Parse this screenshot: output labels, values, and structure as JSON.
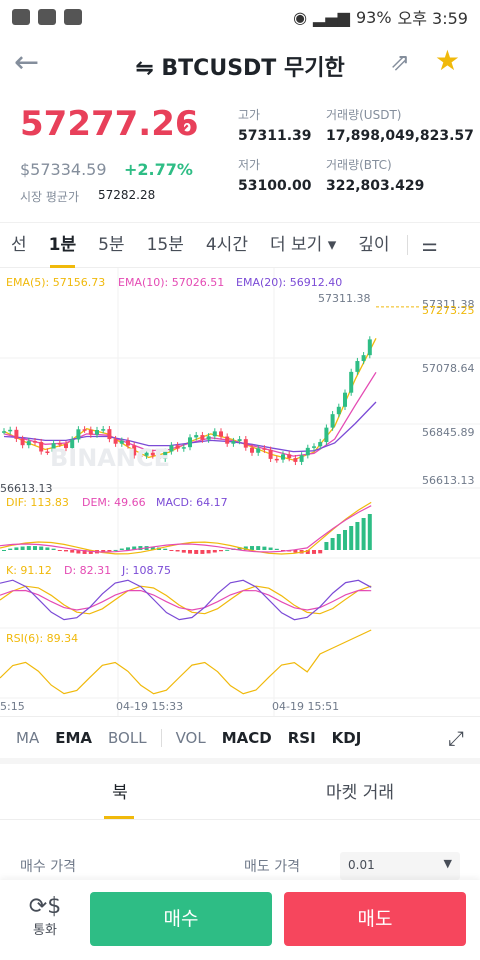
{
  "status_bar": {
    "battery": "93%",
    "time": "오후 3:59"
  },
  "header": {
    "title": "⇋ BTCUSDT 무기한"
  },
  "price": {
    "last": "57277.26",
    "usd": "$57334.59",
    "change": "+2.77%",
    "avg_label": "시장 평균가",
    "avg_value": "57282.28",
    "high_label": "고가",
    "high_value": "57311.39",
    "low_label": "저가",
    "low_value": "53100.00",
    "vol_usdt_label": "거래량(USDT)",
    "vol_usdt_value": "17,898,049,823.57",
    "vol_btc_label": "거래량(BTC)",
    "vol_btc_value": "322,803.429"
  },
  "tabs": [
    {
      "label": "선"
    },
    {
      "label": "1분"
    },
    {
      "label": "5분"
    },
    {
      "label": "15분"
    },
    {
      "label": "4시간"
    },
    {
      "label": "더 보기 ▾"
    },
    {
      "label": "깊이"
    }
  ],
  "chart": {
    "ema5": "EMA(5): 57156.73",
    "ema10": "EMA(10): 57026.51",
    "ema20": "EMA(20): 56912.40",
    "high_mark": "57311.38",
    "price_axis": [
      "57311.38",
      "57273.25",
      "57078.64",
      "56845.89",
      "56613.13"
    ],
    "low_mark": "56613.13",
    "watermark": "BINANCE",
    "dif": "DIF: 113.83",
    "dem": "DEM: 49.66",
    "macd": "MACD: 64.17",
    "k": "K: 91.12",
    "d": "D: 82.31",
    "j": "J: 108.75",
    "rsi": "RSI(6): 89.34",
    "times": [
      "5:15",
      "04-19 15:33",
      "04-19 15:51"
    ],
    "colors": {
      "up": "#2ebd85",
      "down": "#f6465d",
      "ema5": "#f0b90b",
      "ema10": "#e44bb4",
      "ema20": "#7b4bd6"
    }
  },
  "chart_data": {
    "type": "line",
    "title": "",
    "series": [
      {
        "name": "EMA(5)",
        "values": [
          56800,
          56760,
          56730,
          56750,
          56810,
          56790,
          56740,
          56700,
          56720,
          56760,
          56790,
          56770,
          56740,
          56710,
          56690,
          56720,
          56820,
          57000,
          57156.73
        ]
      },
      {
        "name": "EMA(10)",
        "values": [
          56790,
          56770,
          56750,
          56755,
          56790,
          56785,
          56755,
          56725,
          56730,
          56755,
          56775,
          56765,
          56745,
          56725,
          56705,
          56715,
          56770,
          56900,
          57026.51
        ]
      },
      {
        "name": "EMA(20)",
        "values": [
          56780,
          56775,
          56765,
          56765,
          56780,
          56780,
          56765,
          56745,
          56745,
          56755,
          56765,
          56760,
          56750,
          56735,
          56722,
          56725,
          56755,
          56830,
          56912.4
        ]
      }
    ],
    "ylim": [
      56613.13,
      57311.38
    ]
  },
  "indicators": [
    "MA",
    "EMA",
    "BOLL",
    "VOL",
    "MACD",
    "RSI",
    "KDJ"
  ],
  "book": {
    "tab_book": "북",
    "tab_market": "마켓 거래",
    "buy_price_label": "매수 가격",
    "sell_price_label": "매도 가격",
    "precision": "0.01"
  },
  "bottom": {
    "convert": "통화",
    "buy": "매수",
    "sell": "매도"
  }
}
